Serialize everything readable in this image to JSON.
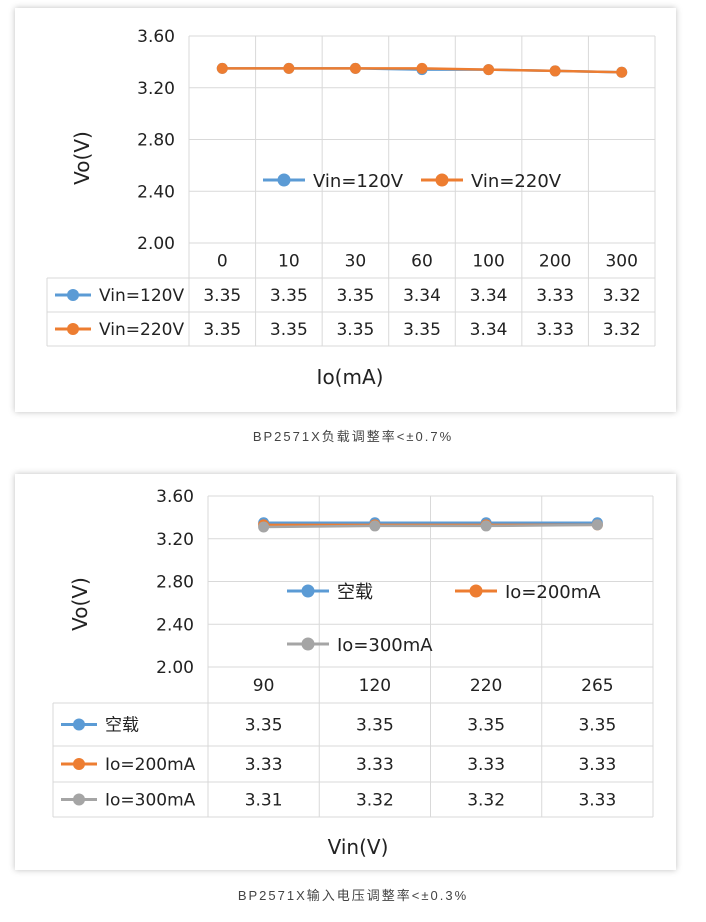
{
  "colors": {
    "blue": "#5B9BD5",
    "orange": "#ED7D31",
    "gray": "#A5A5A5",
    "grid": "#D9D9D9"
  },
  "captions": {
    "chart1": "BP2571X负载调整率<±0.7%",
    "chart2": "BP2571X输入电压调整率<±0.3%"
  },
  "chart_data": [
    {
      "type": "line",
      "xlabel": "Io(mA)",
      "ylabel": "Vo(V)",
      "ylim": [
        2.0,
        3.6
      ],
      "yticks": [
        "3.60",
        "3.20",
        "2.80",
        "2.40",
        "2.00"
      ],
      "categories": [
        "0",
        "10",
        "30",
        "60",
        "100",
        "200",
        "300"
      ],
      "grid": true,
      "legend_position": "middle",
      "series": [
        {
          "name": "Vin=120V",
          "color": "#5B9BD5",
          "values": [
            3.35,
            3.35,
            3.35,
            3.34,
            3.34,
            3.33,
            3.32
          ],
          "labels": [
            "3.35",
            "3.35",
            "3.35",
            "3.34",
            "3.34",
            "3.33",
            "3.32"
          ]
        },
        {
          "name": "Vin=220V",
          "color": "#ED7D31",
          "values": [
            3.35,
            3.35,
            3.35,
            3.35,
            3.34,
            3.33,
            3.32
          ],
          "labels": [
            "3.35",
            "3.35",
            "3.35",
            "3.35",
            "3.34",
            "3.33",
            "3.32"
          ]
        }
      ]
    },
    {
      "type": "line",
      "xlabel": "Vin(V)",
      "ylabel": "Vo(V)",
      "ylim": [
        2.0,
        3.6
      ],
      "yticks": [
        "3.60",
        "3.20",
        "2.80",
        "2.40",
        "2.00"
      ],
      "categories": [
        "90",
        "120",
        "220",
        "265"
      ],
      "grid": true,
      "legend_position": "middle",
      "series": [
        {
          "name": "空载",
          "color": "#5B9BD5",
          "values": [
            3.35,
            3.35,
            3.35,
            3.35
          ],
          "labels": [
            "3.35",
            "3.35",
            "3.35",
            "3.35"
          ]
        },
        {
          "name": "Io=200mA",
          "color": "#ED7D31",
          "values": [
            3.33,
            3.33,
            3.33,
            3.33
          ],
          "labels": [
            "3.33",
            "3.33",
            "3.33",
            "3.33"
          ]
        },
        {
          "name": "Io=300mA",
          "color": "#A5A5A5",
          "values": [
            3.31,
            3.32,
            3.32,
            3.33
          ],
          "labels": [
            "3.31",
            "3.32",
            "3.32",
            "3.33"
          ]
        }
      ]
    }
  ]
}
